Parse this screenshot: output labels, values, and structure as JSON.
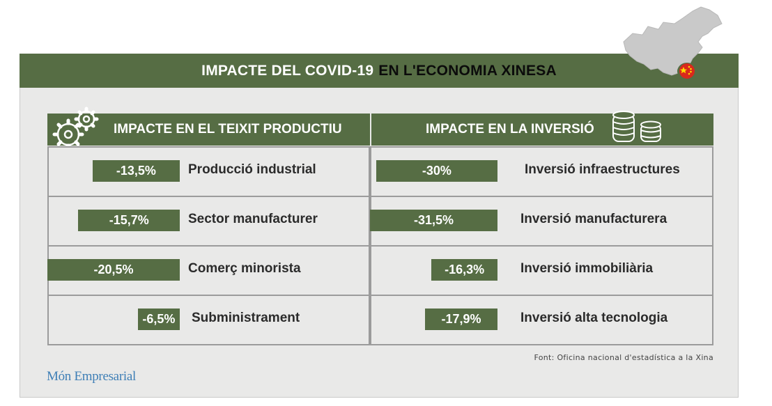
{
  "title": {
    "part1": "IMPACTE DEL COVID-19",
    "part2": "EN L'ECONOMIA XINESA"
  },
  "colors": {
    "accent": "#566d44",
    "panel": "#e9e9e8"
  },
  "icons": {
    "left_header": "gears-icon",
    "right_header": "coin-stacks-icon",
    "map": "china-map-icon",
    "pin": "china-flag-pin-icon"
  },
  "chart_data": [
    {
      "type": "bar",
      "title": "IMPACTE EN EL TEIXIT PRODUCTIU",
      "categories": [
        "Producció industrial",
        "Sector manufacturer",
        "Comerç minorista",
        "Subministrament"
      ],
      "values": [
        -13.5,
        -15.7,
        -20.5,
        -6.5
      ],
      "value_labels": [
        "-13,5%",
        "-15,7%",
        "-20,5%",
        "-6,5%"
      ],
      "unit": "%"
    },
    {
      "type": "bar",
      "title": "IMPACTE EN LA INVERSIÓ",
      "categories": [
        "Inversió infraestructures",
        "Inversió manufacturera",
        "Inversió immobiliària",
        "Inversió alta tecnologia"
      ],
      "values": [
        -30,
        -31.5,
        -16.3,
        -17.9
      ],
      "value_labels": [
        "-30%",
        "-31,5%",
        "-16,3%",
        "-17,9%"
      ],
      "unit": "%"
    }
  ],
  "source": "Font: Oficina nacional d'estadística a la Xina",
  "brand": "Món Empresarial"
}
